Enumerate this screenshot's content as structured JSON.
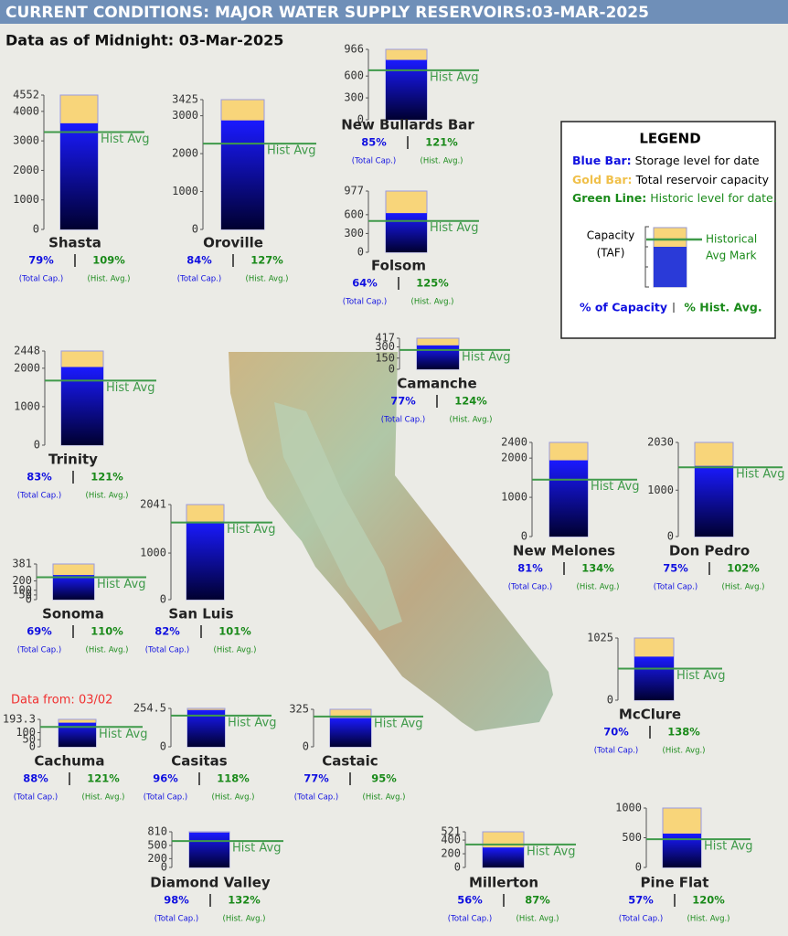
{
  "header": {
    "title": "CURRENT CONDITIONS: MAJOR WATER SUPPLY RESERVOIRS:03-MAR-2025",
    "subtitle": "Data as of Midnight: 03-Mar-2025"
  },
  "legend": {
    "title": "LEGEND",
    "items": [
      {
        "key": "Blue Bar:",
        "text": "Storage level for date",
        "color": "#1010e0"
      },
      {
        "key": "Gold Bar:",
        "text": "Total reservoir capacity",
        "color": "#f0c04a"
      },
      {
        "key": "Green Line:",
        "text": "Historic level for date.",
        "color": "#1a8a1a"
      }
    ],
    "capacity_label": "Capacity",
    "unit_label": "(TAF)",
    "mark_label": [
      "Historical",
      "Avg Mark"
    ],
    "footer": [
      "% of Capacity",
      "% Hist. Avg."
    ]
  },
  "chart_data": [
    {
      "type": "bar",
      "title": "Shasta",
      "capacity": 4552,
      "storage": 3596,
      "hist_avg": 3299,
      "ylim": [
        0,
        4552
      ],
      "yticks": [
        0,
        1000,
        2000,
        3000,
        4000,
        4552
      ],
      "annotation": "Hist Avg",
      "percent_of_capacity": "79%",
      "percent_of_hist_avg": "109%",
      "capacity_caption": "(Total Cap.)",
      "hist_caption": "(Hist. Avg.)",
      "capacity_color": "#f8d57a",
      "storage_color": "#1a1aff",
      "hist_color": "#3f9a4a"
    },
    {
      "type": "bar",
      "title": "Oroville",
      "capacity": 3425,
      "storage": 2877,
      "hist_avg": 2265,
      "ylim": [
        0,
        3425
      ],
      "yticks": [
        0,
        1000,
        2000,
        3000,
        3425
      ],
      "annotation": "Hist Avg",
      "percent_of_capacity": "84%",
      "percent_of_hist_avg": "127%",
      "capacity_caption": "(Total Cap.)",
      "hist_caption": "(Hist. Avg.)",
      "capacity_color": "#f8d57a",
      "storage_color": "#1a1aff",
      "hist_color": "#3f9a4a"
    },
    {
      "type": "bar",
      "title": "New Bullards Bar",
      "capacity": 966,
      "storage": 821,
      "hist_avg": 679,
      "ylim": [
        0,
        966
      ],
      "yticks": [
        0,
        300,
        600,
        966
      ],
      "annotation": "Hist Avg",
      "percent_of_capacity": "85%",
      "percent_of_hist_avg": "121%",
      "capacity_caption": "(Total Cap.)",
      "hist_caption": "(Hist. Avg.)",
      "capacity_color": "#f8d57a",
      "storage_color": "#1a1aff",
      "hist_color": "#3f9a4a"
    },
    {
      "type": "bar",
      "title": "Folsom",
      "capacity": 977,
      "storage": 625,
      "hist_avg": 500,
      "ylim": [
        0,
        977
      ],
      "yticks": [
        0,
        300,
        600,
        977
      ],
      "annotation": "Hist Avg",
      "percent_of_capacity": "64%",
      "percent_of_hist_avg": "125%",
      "capacity_caption": "(Total Cap.)",
      "hist_caption": "(Hist. Avg.)",
      "capacity_color": "#f8d57a",
      "storage_color": "#1a1aff",
      "hist_color": "#3f9a4a"
    },
    {
      "type": "bar",
      "title": "Trinity",
      "capacity": 2448,
      "storage": 2032,
      "hist_avg": 1679,
      "ylim": [
        0,
        2448
      ],
      "yticks": [
        0,
        1000,
        2000,
        2448
      ],
      "annotation": "Hist Avg",
      "percent_of_capacity": "83%",
      "percent_of_hist_avg": "121%",
      "capacity_caption": "(Total Cap.)",
      "hist_caption": "(Hist. Avg.)",
      "capacity_color": "#f8d57a",
      "storage_color": "#1a1aff",
      "hist_color": "#3f9a4a"
    },
    {
      "type": "bar",
      "title": "Camanche",
      "capacity": 417,
      "storage": 321,
      "hist_avg": 259,
      "ylim": [
        0,
        417
      ],
      "yticks": [
        0,
        150,
        300,
        417
      ],
      "annotation": "Hist Avg",
      "percent_of_capacity": "77%",
      "percent_of_hist_avg": "124%",
      "capacity_caption": "(Total Cap.)",
      "hist_caption": "(Hist. Avg.)",
      "capacity_color": "#f8d57a",
      "storage_color": "#1a1aff",
      "hist_color": "#3f9a4a"
    },
    {
      "type": "bar",
      "title": "New Melones",
      "capacity": 2400,
      "storage": 1944,
      "hist_avg": 1451,
      "ylim": [
        0,
        2400
      ],
      "yticks": [
        0,
        1000,
        2000,
        2400
      ],
      "annotation": "Hist Avg",
      "percent_of_capacity": "81%",
      "percent_of_hist_avg": "134%",
      "capacity_caption": "(Total Cap.)",
      "hist_caption": "(Hist. Avg.)",
      "capacity_color": "#f8d57a",
      "storage_color": "#1a1aff",
      "hist_color": "#3f9a4a"
    },
    {
      "type": "bar",
      "title": "Don Pedro",
      "capacity": 2030,
      "storage": 1523,
      "hist_avg": 1493,
      "ylim": [
        0,
        2030
      ],
      "yticks": [
        0,
        1000,
        2030
      ],
      "annotation": "Hist Avg",
      "percent_of_capacity": "75%",
      "percent_of_hist_avg": "102%",
      "capacity_caption": "(Total Cap.)",
      "hist_caption": "(Hist. Avg.)",
      "capacity_color": "#f8d57a",
      "storage_color": "#1a1aff",
      "hist_color": "#3f9a4a"
    },
    {
      "type": "bar",
      "title": "Sonoma",
      "capacity": 381,
      "storage": 263,
      "hist_avg": 239,
      "ylim": [
        0,
        381
      ],
      "yticks": [
        0,
        50,
        100,
        200,
        381
      ],
      "annotation": "Hist Avg",
      "percent_of_capacity": "69%",
      "percent_of_hist_avg": "110%",
      "capacity_caption": "(Total Cap.)",
      "hist_caption": "(Hist. Avg.)",
      "capacity_color": "#f8d57a",
      "storage_color": "#1a1aff",
      "hist_color": "#3f9a4a"
    },
    {
      "type": "bar",
      "title": "San Luis",
      "capacity": 2041,
      "storage": 1674,
      "hist_avg": 1657,
      "ylim": [
        0,
        2041
      ],
      "yticks": [
        0,
        1000,
        2041
      ],
      "annotation": "Hist Avg",
      "percent_of_capacity": "82%",
      "percent_of_hist_avg": "101%",
      "capacity_caption": "(Total Cap.)",
      "hist_caption": "(Hist. Avg.)",
      "capacity_color": "#f8d57a",
      "storage_color": "#1a1aff",
      "hist_color": "#3f9a4a"
    },
    {
      "type": "bar",
      "title": "Cachuma",
      "note": "Data from: 03/02",
      "capacity": 193.3,
      "storage": 170,
      "hist_avg": 140,
      "ylim": [
        0,
        193.3
      ],
      "yticks": [
        0,
        50,
        100,
        193.3
      ],
      "annotation": "Hist Avg",
      "percent_of_capacity": "88%",
      "percent_of_hist_avg": "121%",
      "capacity_caption": "(Total Cap.)",
      "hist_caption": "(Hist. Avg.)",
      "capacity_color": "#f8d57a",
      "storage_color": "#1a1aff",
      "hist_color": "#3f9a4a"
    },
    {
      "type": "bar",
      "title": "Casitas",
      "capacity": 254.5,
      "storage": 244,
      "hist_avg": 207,
      "ylim": [
        0,
        254.5
      ],
      "yticks": [
        0,
        254.5
      ],
      "annotation": "Hist Avg",
      "percent_of_capacity": "96%",
      "percent_of_hist_avg": "118%",
      "capacity_caption": "(Total Cap.)",
      "hist_caption": "(Hist. Avg.)",
      "capacity_color": "#f8d57a",
      "storage_color": "#1a1aff",
      "hist_color": "#3f9a4a"
    },
    {
      "type": "bar",
      "title": "Castaic",
      "capacity": 325,
      "storage": 250,
      "hist_avg": 263,
      "ylim": [
        0,
        325
      ],
      "yticks": [
        0,
        325
      ],
      "annotation": "Hist Avg",
      "percent_of_capacity": "77%",
      "percent_of_hist_avg": "95%",
      "capacity_caption": "(Total Cap.)",
      "hist_caption": "(Hist. Avg.)",
      "capacity_color": "#f8d57a",
      "storage_color": "#1a1aff",
      "hist_color": "#3f9a4a"
    },
    {
      "type": "bar",
      "title": "McClure",
      "capacity": 1025,
      "storage": 718,
      "hist_avg": 520,
      "ylim": [
        0,
        1025
      ],
      "yticks": [
        0,
        1025
      ],
      "annotation": "Hist Avg",
      "percent_of_capacity": "70%",
      "percent_of_hist_avg": "138%",
      "capacity_caption": "(Total Cap.)",
      "hist_caption": "(Hist. Avg.)",
      "capacity_color": "#f8d57a",
      "storage_color": "#1a1aff",
      "hist_color": "#3f9a4a"
    },
    {
      "type": "bar",
      "title": "Diamond Valley",
      "capacity": 810,
      "storage": 794,
      "hist_avg": 601,
      "ylim": [
        0,
        810
      ],
      "yticks": [
        0,
        200,
        500,
        810
      ],
      "annotation": "Hist Avg",
      "percent_of_capacity": "98%",
      "percent_of_hist_avg": "132%",
      "capacity_caption": "(Total Cap.)",
      "hist_caption": "(Hist. Avg.)",
      "capacity_color": "#f8d57a",
      "storage_color": "#1a1aff",
      "hist_color": "#3f9a4a"
    },
    {
      "type": "bar",
      "title": "Millerton",
      "capacity": 521,
      "storage": 292,
      "hist_avg": 335,
      "ylim": [
        0,
        521
      ],
      "yticks": [
        0,
        200,
        400,
        521
      ],
      "annotation": "Hist Avg",
      "percent_of_capacity": "56%",
      "percent_of_hist_avg": "87%",
      "capacity_caption": "(Total Cap.)",
      "hist_caption": "(Hist. Avg.)",
      "capacity_color": "#f8d57a",
      "storage_color": "#1a1aff",
      "hist_color": "#3f9a4a"
    },
    {
      "type": "bar",
      "title": "Pine Flat",
      "capacity": 1000,
      "storage": 570,
      "hist_avg": 475,
      "ylim": [
        0,
        1000
      ],
      "yticks": [
        0,
        500,
        1000
      ],
      "annotation": "Hist Avg",
      "percent_of_capacity": "57%",
      "percent_of_hist_avg": "120%",
      "capacity_caption": "(Total Cap.)",
      "hist_caption": "(Hist. Avg.)",
      "capacity_color": "#f8d57a",
      "storage_color": "#1a1aff",
      "hist_color": "#3f9a4a"
    }
  ]
}
